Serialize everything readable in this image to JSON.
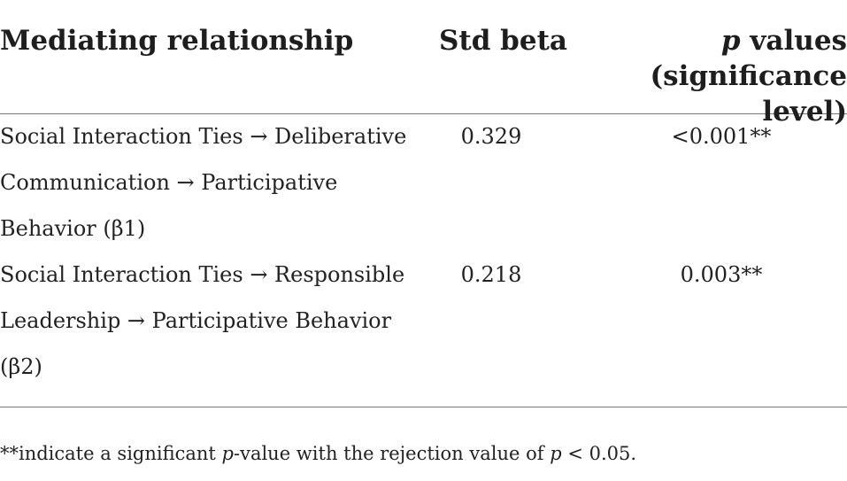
{
  "table": {
    "headers": {
      "relationship": "Mediating relationship",
      "beta": "Std beta",
      "p_italic": "p",
      "p_rest": " values",
      "p_line2": "(significance level)"
    },
    "rows": [
      {
        "relationship_lines": [
          "Social Interaction Ties → Deliberative",
          "Communication → Participative",
          "Behavior (β1)"
        ],
        "beta": "0.329",
        "p_value": "<0.001**"
      },
      {
        "relationship_lines": [
          "Social Interaction Ties → Responsible",
          "Leadership → Participative Behavior",
          "(β2)"
        ],
        "beta": "0.218",
        "p_value": "0.003**"
      }
    ]
  },
  "footnote": {
    "part1": "**indicate a significant ",
    "p1": "p",
    "part2": "-value with the rejection value of ",
    "p2": "p",
    "part3": " < 0.05."
  }
}
